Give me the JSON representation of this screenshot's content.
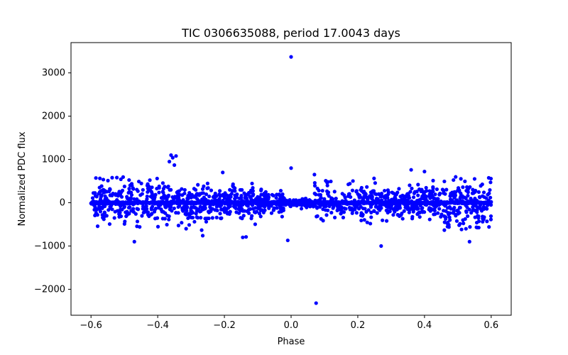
{
  "chart_data": {
    "type": "scatter",
    "title": "TIC 0306635088, period 17.0043 days",
    "xlabel": "Phase",
    "ylabel": "Normalized PDC flux",
    "xlim": [
      -0.66,
      0.66
    ],
    "ylim": [
      -2600,
      3700
    ],
    "xticks": [
      -0.6,
      -0.4,
      -0.2,
      0.0,
      0.2,
      0.4,
      0.6
    ],
    "xtick_labels": [
      "−0.6",
      "−0.4",
      "−0.2",
      "0.0",
      "0.2",
      "0.4",
      "0.6"
    ],
    "yticks": [
      -2000,
      -1000,
      0,
      1000,
      2000,
      3000
    ],
    "ytick_labels": [
      "−2000",
      "−1000",
      "0",
      "1000",
      "2000",
      "3000"
    ],
    "grid": false,
    "marker_color": "#0000ff",
    "series": [
      {
        "name": "flux",
        "notable_points": [
          {
            "x": 0.0,
            "y": 3370
          },
          {
            "x": 0.0,
            "y": 800
          },
          {
            "x": 0.075,
            "y": -2320
          },
          {
            "x": -0.01,
            "y": -870
          },
          {
            "x": 0.27,
            "y": -1000
          },
          {
            "x": -0.47,
            "y": -900
          },
          {
            "x": 0.535,
            "y": -900
          },
          {
            "x": -0.36,
            "y": 1100
          },
          {
            "x": -0.345,
            "y": 1080
          },
          {
            "x": -0.355,
            "y": 1040
          },
          {
            "x": -0.365,
            "y": 950
          },
          {
            "x": -0.35,
            "y": 870
          },
          {
            "x": 0.07,
            "y": 650
          },
          {
            "x": -0.205,
            "y": 700
          },
          {
            "x": 0.36,
            "y": 760
          },
          {
            "x": 0.4,
            "y": 720
          },
          {
            "x": -0.145,
            "y": -800
          },
          {
            "x": -0.135,
            "y": -790
          },
          {
            "x": -0.265,
            "y": -760
          }
        ],
        "bulk": {
          "x_range": [
            -0.6,
            0.6
          ],
          "dense_band": [
            -60,
            60
          ],
          "scatter_envelope": [
            -650,
            600
          ],
          "quiet_region": [
            -0.02,
            0.07
          ]
        }
      }
    ]
  }
}
